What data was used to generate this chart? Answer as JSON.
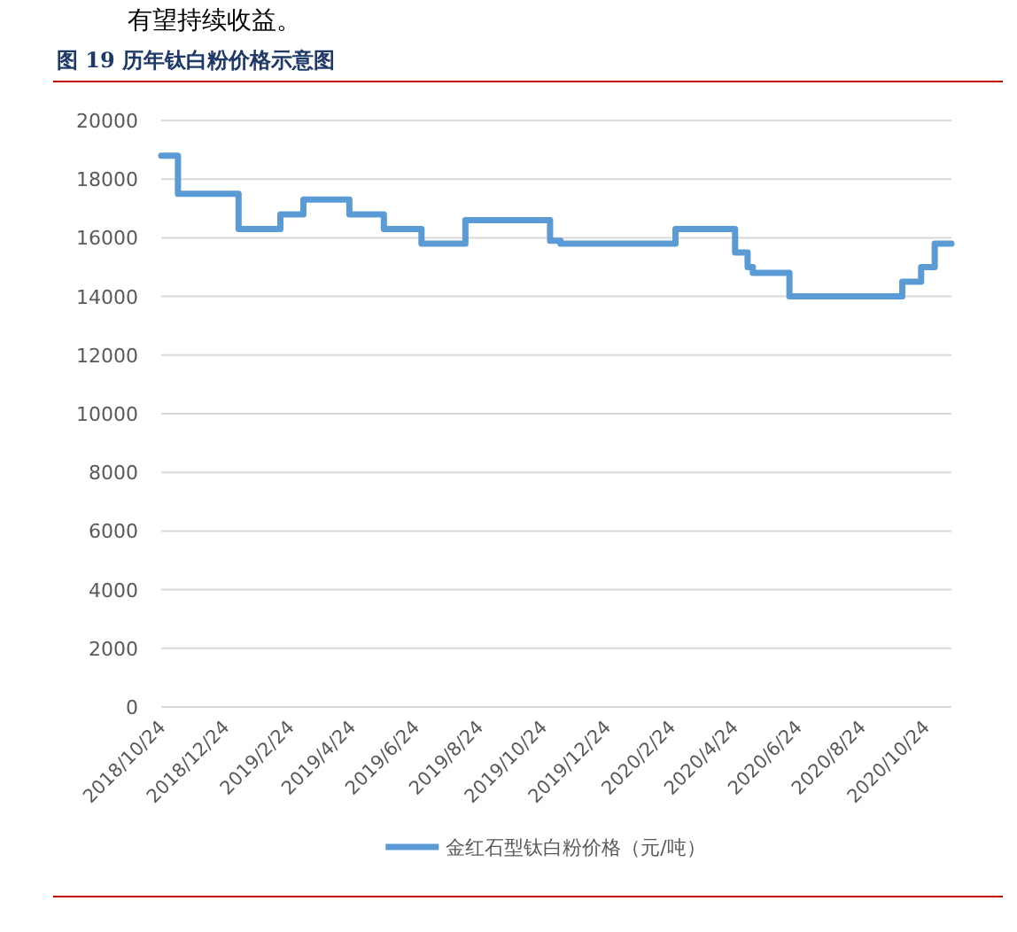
{
  "chart_data": {
    "type": "step",
    "title": "图 19 历年钛白粉价格示意图",
    "annotations": [
      "有望持续收益。"
    ],
    "x": [
      "2018-10-24",
      "2018-11-09",
      "2019-01-06",
      "2019-02-15",
      "2019-03-09",
      "2019-04-22",
      "2019-05-25",
      "2019-06-30",
      "2019-08-11",
      "2019-10-31",
      "2019-11-10",
      "2020-02-28",
      "2020-04-25",
      "2020-05-07",
      "2020-05-12",
      "2020-06-16",
      "2020-10-02",
      "2020-10-20",
      "2020-11-02",
      "2020-11-18"
    ],
    "series": [
      {
        "name": "金红石型钛白粉价格（元/吨）",
        "color": "#5b9bd5",
        "values": [
          18800,
          17500,
          16300,
          16800,
          17300,
          16800,
          16300,
          15800,
          16600,
          15900,
          15800,
          16300,
          15500,
          15000,
          14800,
          14000,
          14500,
          15000,
          15800,
          15800
        ]
      }
    ],
    "xlim": [
      "2018-10-24",
      "2020-11-18"
    ],
    "xticks": [
      {
        "value": "2018-10-24",
        "label": "2018/10/24"
      },
      {
        "value": "2018-12-24",
        "label": "2018/12/24"
      },
      {
        "value": "2019-02-24",
        "label": "2019/2/24"
      },
      {
        "value": "2019-04-24",
        "label": "2019/4/24"
      },
      {
        "value": "2019-06-24",
        "label": "2019/6/24"
      },
      {
        "value": "2019-08-24",
        "label": "2019/8/24"
      },
      {
        "value": "2019-10-24",
        "label": "2019/10/24"
      },
      {
        "value": "2019-12-24",
        "label": "2019/12/24"
      },
      {
        "value": "2020-02-24",
        "label": "2020/2/24"
      },
      {
        "value": "2020-04-24",
        "label": "2020/4/24"
      },
      {
        "value": "2020-06-24",
        "label": "2020/6/24"
      },
      {
        "value": "2020-08-24",
        "label": "2020/8/24"
      },
      {
        "value": "2020-10-24",
        "label": "2020/10/24"
      }
    ],
    "ylim": [
      0,
      20000
    ],
    "yticks": [
      0,
      2000,
      4000,
      6000,
      8000,
      10000,
      12000,
      14000,
      16000,
      18000,
      20000
    ],
    "grid": "y",
    "legend": "bottom"
  }
}
